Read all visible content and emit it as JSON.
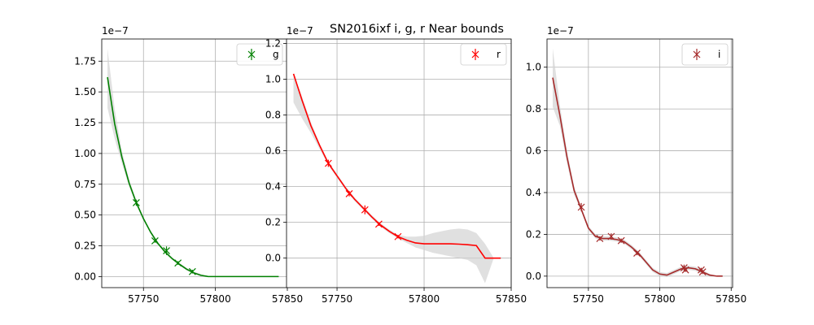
{
  "figure": {
    "suptitle": "SN2016ixf  i, g, r Near bounds"
  },
  "chart_data": [
    {
      "type": "line",
      "legend": "g",
      "legend_loc": "upper right",
      "color": "#008000",
      "band_color": "#d3d3d3",
      "offset_text": "1e−7",
      "xlim": [
        57721,
        57850
      ],
      "ylim": [
        -0.09,
        1.93
      ],
      "xticks": [
        57750,
        57800,
        57850
      ],
      "yticks": [
        0.0,
        0.25,
        0.5,
        0.75,
        1.0,
        1.25,
        1.5,
        1.75
      ],
      "ytick_labels": [
        "0.00",
        "0.25",
        "0.50",
        "0.75",
        "1.00",
        "1.25",
        "1.50",
        "1.75"
      ],
      "grid": true,
      "observations": [
        {
          "x": 57745,
          "y": 0.6,
          "err": 0.025
        },
        {
          "x": 57758,
          "y": 0.29,
          "err": 0.015
        },
        {
          "x": 57766,
          "y": 0.21,
          "err": 0.035
        },
        {
          "x": 57774,
          "y": 0.11,
          "err": 0.015
        },
        {
          "x": 57784,
          "y": 0.04,
          "err": 0.015
        }
      ],
      "model_x": [
        57725,
        57730,
        57735,
        57740,
        57745,
        57750,
        57755,
        57760,
        57765,
        57770,
        57775,
        57780,
        57785,
        57790,
        57795,
        57800,
        57810,
        57820,
        57830,
        57840,
        57844
      ],
      "model_y": [
        1.62,
        1.24,
        0.97,
        0.76,
        0.6,
        0.47,
        0.36,
        0.27,
        0.2,
        0.145,
        0.1,
        0.06,
        0.03,
        0.01,
        0.0,
        0.0,
        0.0,
        0.0,
        0.0,
        0.0,
        0.0
      ],
      "band_upper": [
        1.85,
        1.36,
        1.02,
        0.79,
        0.62,
        0.48,
        0.37,
        0.28,
        0.21,
        0.155,
        0.11,
        0.07,
        0.04,
        0.02,
        0.0,
        0.0,
        0.0,
        0.0,
        0.0,
        0.0,
        0.0
      ],
      "band_lower": [
        1.37,
        1.12,
        0.92,
        0.73,
        0.58,
        0.46,
        0.35,
        0.26,
        0.19,
        0.135,
        0.09,
        0.05,
        0.02,
        0.0,
        0.0,
        0.0,
        0.0,
        0.0,
        0.0,
        0.0,
        0.0
      ]
    },
    {
      "type": "line",
      "legend": "r",
      "legend_loc": "upper right",
      "color": "#ff0000",
      "band_color": "#d3d3d3",
      "offset_text": "1e−7",
      "xlim": [
        57721,
        57850
      ],
      "ylim": [
        -0.165,
        1.225
      ],
      "xticks": [
        57750,
        57800,
        57850
      ],
      "yticks": [
        0.0,
        0.2,
        0.4,
        0.6,
        0.8,
        1.0,
        1.2
      ],
      "ytick_labels": [
        "0.0",
        "0.2",
        "0.4",
        "0.6",
        "0.8",
        "1.0",
        "1.2"
      ],
      "grid": true,
      "observations": [
        {
          "x": 57745,
          "y": 0.53,
          "err": 0.02
        },
        {
          "x": 57757,
          "y": 0.36,
          "err": 0.015
        },
        {
          "x": 57766,
          "y": 0.27,
          "err": 0.025
        },
        {
          "x": 57774,
          "y": 0.19,
          "err": 0.01
        },
        {
          "x": 57785,
          "y": 0.12,
          "err": 0.01
        }
      ],
      "model_x": [
        57725,
        57730,
        57735,
        57740,
        57745,
        57750,
        57755,
        57760,
        57765,
        57770,
        57775,
        57780,
        57785,
        57790,
        57795,
        57800,
        57805,
        57810,
        57815,
        57820,
        57825,
        57830,
        57835,
        57840,
        57844
      ],
      "model_y": [
        1.03,
        0.88,
        0.74,
        0.63,
        0.53,
        0.46,
        0.39,
        0.33,
        0.28,
        0.23,
        0.185,
        0.15,
        0.12,
        0.1,
        0.085,
        0.08,
        0.08,
        0.08,
        0.08,
        0.078,
        0.075,
        0.07,
        0.0,
        0.0,
        0.0
      ],
      "band_upper": [
        1.03,
        0.9,
        0.76,
        0.64,
        0.54,
        0.47,
        0.4,
        0.34,
        0.29,
        0.24,
        0.195,
        0.16,
        0.13,
        0.12,
        0.12,
        0.125,
        0.14,
        0.15,
        0.16,
        0.165,
        0.16,
        0.14,
        0.08,
        0.0,
        0.0
      ],
      "band_lower": [
        0.87,
        0.78,
        0.7,
        0.61,
        0.52,
        0.45,
        0.38,
        0.32,
        0.27,
        0.22,
        0.175,
        0.14,
        0.11,
        0.085,
        0.06,
        0.045,
        0.03,
        0.02,
        0.01,
        0.0,
        -0.01,
        -0.04,
        -0.14,
        0.0,
        0.0
      ]
    },
    {
      "type": "line",
      "legend": "i",
      "legend_loc": "upper right",
      "color": "#a52a2a",
      "band_color": "#d3d3d3",
      "offset_text": "1e−7",
      "xlim": [
        57721,
        57851
      ],
      "ylim": [
        -0.055,
        1.135
      ],
      "xticks": [
        57750,
        57800,
        57850
      ],
      "yticks": [
        0.0,
        0.2,
        0.4,
        0.6,
        0.8,
        1.0
      ],
      "ytick_labels": [
        "0.0",
        "0.2",
        "0.4",
        "0.6",
        "0.8",
        "1.0"
      ],
      "grid": true,
      "observations": [
        {
          "x": 57745,
          "y": 0.33,
          "err": 0.02
        },
        {
          "x": 57758,
          "y": 0.18,
          "err": 0.01
        },
        {
          "x": 57766,
          "y": 0.19,
          "err": 0.015
        },
        {
          "x": 57773,
          "y": 0.17,
          "err": 0.01
        },
        {
          "x": 57784,
          "y": 0.11,
          "err": 0.01
        },
        {
          "x": 57817,
          "y": 0.04,
          "err": 0.015
        },
        {
          "x": 57818,
          "y": 0.03,
          "err": 0.01
        },
        {
          "x": 57829,
          "y": 0.03,
          "err": 0.01
        },
        {
          "x": 57830,
          "y": 0.02,
          "err": 0.01
        }
      ],
      "model_x": [
        57725,
        57730,
        57735,
        57740,
        57745,
        57750,
        57755,
        57760,
        57765,
        57770,
        57775,
        57780,
        57785,
        57790,
        57795,
        57800,
        57805,
        57810,
        57815,
        57820,
        57825,
        57830,
        57835,
        57840,
        57844
      ],
      "model_y": [
        0.95,
        0.77,
        0.57,
        0.41,
        0.32,
        0.23,
        0.19,
        0.18,
        0.18,
        0.175,
        0.165,
        0.14,
        0.11,
        0.07,
        0.03,
        0.01,
        0.005,
        0.02,
        0.035,
        0.04,
        0.035,
        0.02,
        0.005,
        0.0,
        0.0
      ],
      "band_upper": [
        1.09,
        0.82,
        0.6,
        0.43,
        0.33,
        0.24,
        0.2,
        0.19,
        0.19,
        0.185,
        0.175,
        0.15,
        0.12,
        0.08,
        0.04,
        0.02,
        0.015,
        0.03,
        0.045,
        0.05,
        0.045,
        0.03,
        0.01,
        0.0,
        0.0
      ],
      "band_lower": [
        0.81,
        0.72,
        0.54,
        0.39,
        0.31,
        0.22,
        0.18,
        0.17,
        0.17,
        0.165,
        0.155,
        0.13,
        0.1,
        0.06,
        0.02,
        0.0,
        -0.005,
        0.01,
        0.025,
        0.03,
        0.025,
        0.01,
        0.0,
        0.0,
        0.0
      ]
    }
  ]
}
